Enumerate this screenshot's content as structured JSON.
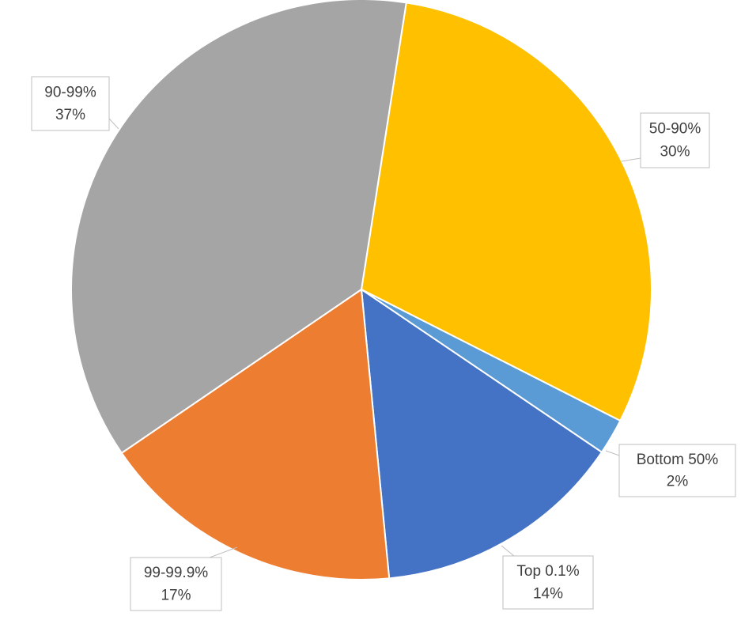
{
  "chart_data": {
    "type": "pie",
    "categories": [
      "50-90%",
      "Bottom 50%",
      "Top 0.1%",
      "99-99.9%",
      "90-99%"
    ],
    "values": [
      30,
      2,
      14,
      17,
      37
    ],
    "value_labels": [
      "30%",
      "2%",
      "14%",
      "17%",
      "37%"
    ],
    "colors": [
      "#ffc000",
      "#5b9bd5",
      "#4472c4",
      "#ed7d31",
      "#a5a5a5"
    ]
  }
}
